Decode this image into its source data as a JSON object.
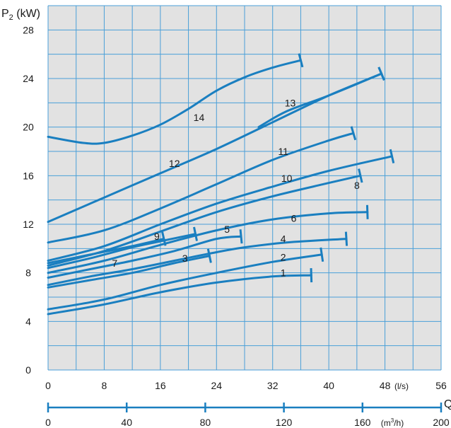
{
  "chart_data": {
    "type": "line",
    "ylabel": "P",
    "ylabel_sub": "2",
    "ylabel_unit": " (kW)",
    "xlabel": "Q",
    "x_unit_ls": "(l/s)",
    "x_unit_m3h": "(m",
    "x_unit_m3h_sup": "3",
    "x_unit_m3h_end": "/h)",
    "xlim": [
      0,
      56
    ],
    "ylim": [
      0,
      30
    ],
    "x_ticks": [
      "0",
      "8",
      "16",
      "24",
      "32",
      "40",
      "48",
      "56"
    ],
    "x2_ticks": [
      "0",
      "40",
      "80",
      "120",
      "160",
      "200"
    ],
    "y_ticks": [
      "0",
      "4",
      "8",
      "12",
      "16",
      "20",
      "24",
      "28"
    ],
    "grid": true,
    "colors": {
      "curve": "#1a7fc0",
      "grid": "#4a9fd8",
      "background": "#e2e2e2",
      "axis": "#1a7fc0"
    },
    "series": [
      {
        "name": "1",
        "label_at": [
          33.5,
          8.0
        ],
        "points": [
          [
            0,
            4.6
          ],
          [
            8,
            5.4
          ],
          [
            16,
            6.4
          ],
          [
            24,
            7.2
          ],
          [
            32,
            7.7
          ],
          [
            37.5,
            7.8
          ]
        ]
      },
      {
        "name": "2",
        "label_at": [
          33.5,
          9.3
        ],
        "points": [
          [
            0,
            5.0
          ],
          [
            8,
            5.8
          ],
          [
            16,
            7.0
          ],
          [
            24,
            8.0
          ],
          [
            32,
            8.9
          ],
          [
            39,
            9.5
          ]
        ]
      },
      {
        "name": "3",
        "label_at": [
          19.5,
          9.2
        ],
        "points": [
          [
            0,
            6.8
          ],
          [
            6,
            7.4
          ],
          [
            12,
            8.0
          ],
          [
            18,
            8.8
          ],
          [
            23,
            9.4
          ]
        ]
      },
      {
        "name": "4",
        "label_at": [
          33.5,
          10.8
        ],
        "points": [
          [
            0,
            7.0
          ],
          [
            6,
            7.7
          ],
          [
            12,
            8.3
          ],
          [
            18,
            9.0
          ],
          [
            24,
            9.7
          ],
          [
            28,
            10.1
          ],
          [
            34,
            10.5
          ],
          [
            42.5,
            10.8
          ]
        ]
      },
      {
        "name": "5",
        "label_at": [
          25.5,
          11.6
        ],
        "points": [
          [
            0,
            7.6
          ],
          [
            6,
            8.3
          ],
          [
            12,
            9.0
          ],
          [
            18,
            9.8
          ],
          [
            24,
            10.8
          ],
          [
            27.5,
            11.0
          ]
        ]
      },
      {
        "name": "6",
        "label_at": [
          35,
          12.5
        ],
        "points": [
          [
            0,
            8.0
          ],
          [
            8,
            9.0
          ],
          [
            16,
            10.3
          ],
          [
            24,
            11.5
          ],
          [
            32,
            12.4
          ],
          [
            40,
            12.9
          ],
          [
            45.5,
            13.0
          ]
        ]
      },
      {
        "name": "7",
        "label_at": [
          9.5,
          8.8
        ],
        "points": [
          [
            0,
            8.4
          ],
          [
            6,
            9.2
          ],
          [
            12,
            10.1
          ],
          [
            16,
            10.6
          ],
          [
            21,
            11.2
          ]
        ]
      },
      {
        "name": "8",
        "label_at": [
          44,
          15.2
        ],
        "points": [
          [
            0,
            8.6
          ],
          [
            8,
            9.8
          ],
          [
            16,
            11.4
          ],
          [
            24,
            13.0
          ],
          [
            32,
            14.3
          ],
          [
            40,
            15.4
          ],
          [
            44.5,
            16.0
          ]
        ]
      },
      {
        "name": "9",
        "label_at": [
          15.5,
          11.0
        ],
        "points": [
          [
            0,
            8.8
          ],
          [
            6,
            9.5
          ],
          [
            12,
            10.2
          ],
          [
            16.5,
            10.8
          ]
        ]
      },
      {
        "name": "10",
        "label_at": [
          34,
          15.8
        ],
        "points": [
          [
            0,
            9.0
          ],
          [
            8,
            10.2
          ],
          [
            16,
            12.0
          ],
          [
            24,
            13.7
          ],
          [
            32,
            15.1
          ],
          [
            40,
            16.4
          ],
          [
            49,
            17.6
          ]
        ]
      },
      {
        "name": "11",
        "label_at": [
          33.5,
          18.0
        ],
        "points": [
          [
            0,
            10.5
          ],
          [
            8,
            11.5
          ],
          [
            16,
            13.3
          ],
          [
            24,
            15.3
          ],
          [
            32,
            17.3
          ],
          [
            40,
            18.9
          ],
          [
            43.5,
            19.5
          ]
        ]
      },
      {
        "name": "12",
        "label_at": [
          18,
          17.0
        ],
        "points": [
          [
            0,
            12.2
          ],
          [
            8,
            14.2
          ],
          [
            16,
            16.2
          ],
          [
            24,
            18.2
          ],
          [
            32,
            20.4
          ],
          [
            40,
            22.6
          ],
          [
            47.5,
            24.4
          ]
        ]
      },
      {
        "name": "13",
        "label_at": [
          34.5,
          22.0
        ],
        "points": [
          [
            30,
            20.0
          ],
          [
            34,
            21.3
          ],
          [
            40,
            22.6
          ],
          [
            47.5,
            24.4
          ]
        ]
      },
      {
        "name": "14",
        "label_at": [
          21.5,
          20.8
        ],
        "points": [
          [
            0,
            19.2
          ],
          [
            5,
            18.7
          ],
          [
            8,
            18.7
          ],
          [
            12,
            19.3
          ],
          [
            16,
            20.2
          ],
          [
            20,
            21.5
          ],
          [
            24,
            23.0
          ],
          [
            28,
            24.1
          ],
          [
            32,
            24.9
          ],
          [
            36,
            25.5
          ]
        ]
      }
    ]
  }
}
